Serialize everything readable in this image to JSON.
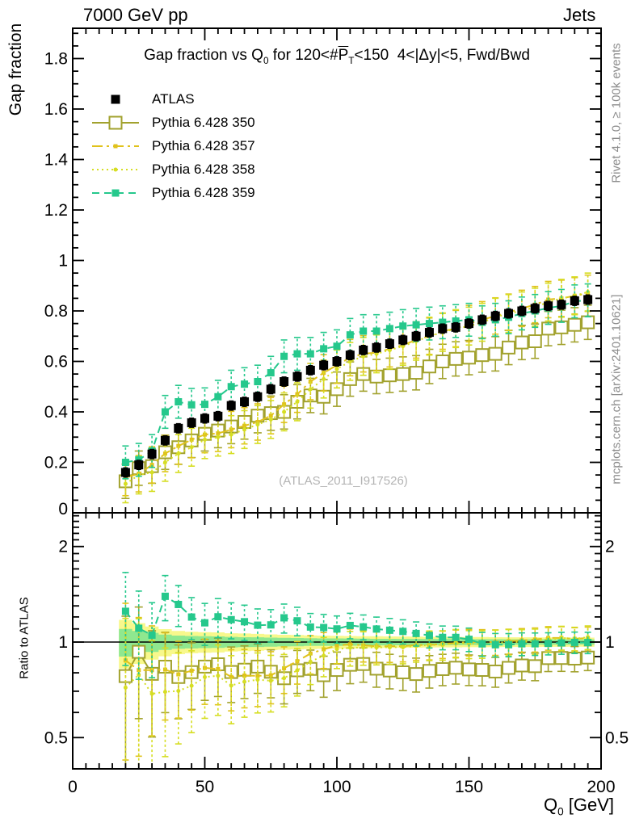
{
  "header": {
    "left": "7000 GeV pp",
    "right": "Jets"
  },
  "main_panel": {
    "title_parts": {
      "pre": "Gap fraction vs Q",
      "q_sub": "0",
      "mid": " for 120<#",
      "pbar": "P",
      "p_sub": "T",
      "post": "<150  4<|Δy|<5, Fwd/Bwd"
    },
    "ylabel": "Gap fraction",
    "watermark": "(ATLAS_2011_I917526)"
  },
  "ratio_panel": {
    "ylabel": "Ratio to ATLAS"
  },
  "right_margin": {
    "top": "Rivet 4.1.0, ≥ 100k events",
    "bottom": "mcplots.cern.ch [arXiv:2401.10621]"
  },
  "x_axis": {
    "label_parts": {
      "base": "Q",
      "sub": "0",
      "unit": " [GeV]"
    }
  },
  "chart_data": {
    "type": "line",
    "title": "Gap fraction vs Q0 for 120<#PT<150  4<|dy|<5, Fwd/Bwd",
    "xlabel": "Q0 [GeV]",
    "ylabel": "Gap fraction",
    "ratio_ylabel": "Ratio to ATLAS",
    "xlim": [
      0,
      200
    ],
    "ylim_main": [
      0,
      1.92
    ],
    "ratio_ylim": [
      0.4,
      2.55
    ],
    "ratio_yscale": "log",
    "xticks": [
      0,
      50,
      100,
      150,
      200
    ],
    "x_minor_step": 5,
    "yticks_main": [
      0,
      0.2,
      0.4,
      0.6,
      0.8,
      1,
      1.2,
      1.4,
      1.6,
      1.8
    ],
    "y_minor_step": 0.05,
    "yticks_ratio": [
      0.5,
      1,
      2
    ],
    "x": [
      20,
      25,
      30,
      35,
      40,
      45,
      50,
      55,
      60,
      65,
      70,
      75,
      80,
      85,
      90,
      95,
      100,
      105,
      110,
      115,
      120,
      125,
      130,
      135,
      140,
      145,
      150,
      155,
      160,
      165,
      170,
      175,
      180,
      185,
      190,
      195
    ],
    "series": [
      {
        "name": "ATLAS",
        "color": "#000000",
        "marker": "filled-square",
        "marker_size": 11,
        "line": "none",
        "err": 0.018,
        "values": [
          0.16,
          0.19,
          0.233,
          0.287,
          0.335,
          0.357,
          0.374,
          0.383,
          0.425,
          0.44,
          0.46,
          0.49,
          0.52,
          0.54,
          0.565,
          0.585,
          0.6,
          0.625,
          0.645,
          0.655,
          0.67,
          0.685,
          0.7,
          0.715,
          0.73,
          0.735,
          0.75,
          0.765,
          0.78,
          0.79,
          0.8,
          0.81,
          0.82,
          0.825,
          0.84,
          0.845
        ]
      },
      {
        "name": "Pythia 6.428 350",
        "color": "#a2a22e",
        "marker": "open-square",
        "marker_size": 15,
        "line": "solid",
        "err": 0.068,
        "values": [
          0.125,
          0.177,
          0.185,
          0.24,
          0.26,
          0.287,
          0.313,
          0.326,
          0.342,
          0.36,
          0.385,
          0.395,
          0.4,
          0.44,
          0.465,
          0.46,
          0.49,
          0.53,
          0.55,
          0.54,
          0.545,
          0.55,
          0.555,
          0.58,
          0.6,
          0.61,
          0.615,
          0.625,
          0.63,
          0.655,
          0.675,
          0.68,
          0.73,
          0.735,
          0.745,
          0.755
        ]
      },
      {
        "name": "Pythia 6.428 357",
        "color": "#e0c21c",
        "marker": "small-square",
        "marker_size": 5,
        "line": "dash-dot",
        "err": 0.072,
        "values": [
          0.14,
          0.155,
          0.19,
          0.235,
          0.265,
          0.29,
          0.31,
          0.315,
          0.33,
          0.345,
          0.36,
          0.385,
          0.43,
          0.47,
          0.52,
          0.555,
          0.585,
          0.615,
          0.63,
          0.635,
          0.65,
          0.665,
          0.685,
          0.7,
          0.72,
          0.73,
          0.75,
          0.765,
          0.78,
          0.795,
          0.81,
          0.825,
          0.845,
          0.85,
          0.86,
          0.87
        ]
      },
      {
        "name": "Pythia 6.428 358",
        "color": "#d6de23",
        "marker": "small-dot",
        "marker_size": 5,
        "line": "dotted",
        "err": 0.075,
        "values": [
          0.115,
          0.15,
          0.16,
          0.2,
          0.235,
          0.26,
          0.29,
          0.3,
          0.31,
          0.33,
          0.35,
          0.37,
          0.4,
          0.44,
          0.49,
          0.53,
          0.57,
          0.6,
          0.62,
          0.63,
          0.645,
          0.66,
          0.68,
          0.7,
          0.715,
          0.73,
          0.74,
          0.755,
          0.775,
          0.79,
          0.8,
          0.815,
          0.835,
          0.85,
          0.86,
          0.875
        ]
      },
      {
        "name": "Pythia 6.428 359",
        "color": "#25c88c",
        "marker": "filled-square",
        "marker_size": 9,
        "line": "dashed",
        "err": 0.065,
        "values": [
          0.2,
          0.21,
          0.245,
          0.4,
          0.44,
          0.428,
          0.43,
          0.46,
          0.5,
          0.51,
          0.52,
          0.555,
          0.62,
          0.63,
          0.63,
          0.65,
          0.66,
          0.705,
          0.72,
          0.72,
          0.73,
          0.74,
          0.745,
          0.75,
          0.755,
          0.76,
          0.765,
          0.755,
          0.765,
          0.775,
          0.79,
          0.8,
          0.812,
          0.82,
          0.838,
          0.842
        ]
      }
    ],
    "ratio_bands": {
      "yellow": {
        "color": "#f8f88c",
        "half_widths": [
          0.175,
          0.147,
          0.12,
          0.098,
          0.084,
          0.078,
          0.075,
          0.073,
          0.066,
          0.064,
          0.061,
          0.057,
          0.054,
          0.052,
          0.05,
          0.048,
          0.047,
          0.045,
          0.043,
          0.043,
          0.042,
          0.041,
          0.04,
          0.039,
          0.038,
          0.038,
          0.037,
          0.037,
          0.036,
          0.035,
          0.035,
          0.035,
          0.034,
          0.034,
          0.033,
          0.033
        ]
      },
      "green": {
        "color": "#8fe88f",
        "half_widths": [
          0.1,
          0.084,
          0.069,
          0.056,
          0.048,
          0.045,
          0.043,
          0.042,
          0.038,
          0.036,
          0.035,
          0.033,
          0.031,
          0.03,
          0.028,
          0.027,
          0.027,
          0.026,
          0.025,
          0.024,
          0.024,
          0.023,
          0.023,
          0.022,
          0.022,
          0.022,
          0.021,
          0.021,
          0.021,
          0.02,
          0.02,
          0.02,
          0.02,
          0.019,
          0.019,
          0.019
        ]
      }
    },
    "ratio_reference_line": 1
  }
}
